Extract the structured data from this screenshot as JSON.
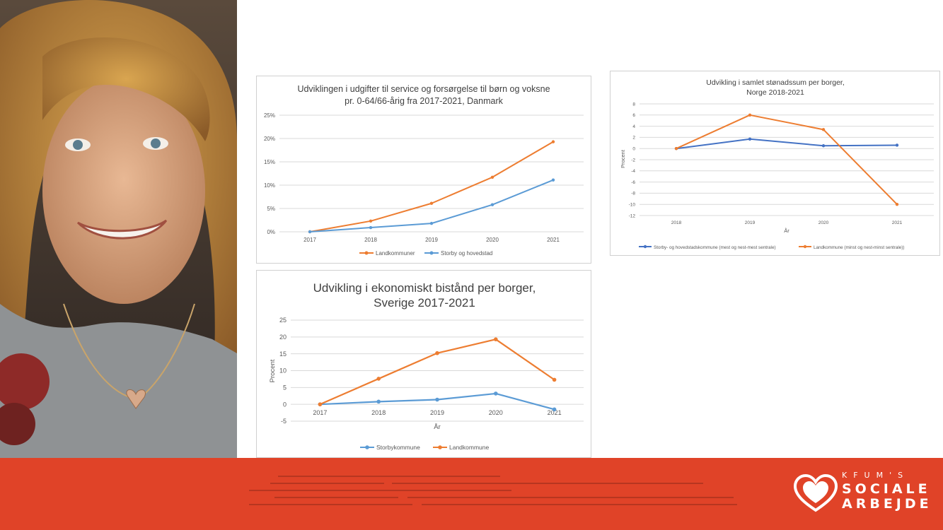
{
  "photo": {
    "alt_icon": "portrait-photo"
  },
  "charts": [
    {
      "title_lines": [
        "Udviklingen i udgifter til service og forsørgelse til børn og voksne",
        "pr. 0-64/66-årig fra 2017-2021, Danmark"
      ],
      "xlabel": "",
      "ylabel": "",
      "y_tick_labels": [
        "0%",
        "5%",
        "10%",
        "15%",
        "20%",
        "25%"
      ],
      "legend": [
        "Landkommuner",
        "Storby og hovedstad"
      ]
    },
    {
      "title_lines": [
        "Udvikling i samlet stønadssum per borger,",
        "Norge 2018-2021"
      ],
      "xlabel": "År",
      "ylabel": "Procent",
      "legend": [
        "Storby- og hovedstadskommune (mest og nest-mest sentrale)",
        "Landkommune (minst og nest-minst sentrale))"
      ]
    },
    {
      "title_lines": [
        "Udvikling i ekonomiskt bistånd per borger,",
        "Sverige 2017-2021"
      ],
      "xlabel": "År",
      "ylabel": "Procent",
      "legend": [
        "Storbykommune",
        "Landkommune"
      ]
    }
  ],
  "chart_data": [
    {
      "type": "line",
      "categories": [
        "2017",
        "2018",
        "2019",
        "2020",
        "2021"
      ],
      "ylim": [
        0,
        25
      ],
      "y_unit": "%",
      "grid": true,
      "legend_position": "bottom",
      "series": [
        {
          "name": "Landkommuner",
          "color": "#ed7d31",
          "values": [
            0,
            2.3,
            6.1,
            11.7,
            19.3
          ]
        },
        {
          "name": "Storby og hovedstad",
          "color": "#5b9bd5",
          "values": [
            0,
            0.9,
            1.8,
            5.8,
            11.1
          ]
        }
      ]
    },
    {
      "type": "line",
      "categories": [
        "2018",
        "2019",
        "2020",
        "2021"
      ],
      "ylim": [
        -12,
        8
      ],
      "yticks": [
        -12,
        -10,
        -8,
        -6,
        -4,
        -2,
        0,
        2,
        4,
        6,
        8
      ],
      "grid": true,
      "legend_position": "bottom",
      "series": [
        {
          "name": "Storby- og hovedstadskommune (mest og nest-mest sentrale)",
          "color": "#4472c4",
          "values": [
            0,
            1.7,
            0.5,
            0.6
          ]
        },
        {
          "name": "Landkommune (minst og nest-minst sentrale))",
          "color": "#ed7d31",
          "values": [
            0,
            6.0,
            3.4,
            -10.0
          ]
        }
      ]
    },
    {
      "type": "line",
      "categories": [
        "2017",
        "2018",
        "2019",
        "2020",
        "2021"
      ],
      "ylim": [
        -5,
        25
      ],
      "yticks": [
        -5,
        0,
        5,
        10,
        15,
        20,
        25
      ],
      "grid": true,
      "legend_position": "bottom",
      "series": [
        {
          "name": "Storbykommune",
          "color": "#5b9bd5",
          "values": [
            0,
            0.8,
            1.4,
            3.2,
            -1.5
          ]
        },
        {
          "name": "Landkommune",
          "color": "#ed7d31",
          "values": [
            0,
            7.6,
            15.2,
            19.3,
            7.3
          ]
        }
      ]
    }
  ],
  "logo": {
    "line1": "KFUM'S",
    "line2": "SOCIALE",
    "line3": "ARBEJDE",
    "icon": "heart-hands-icon"
  },
  "colors": {
    "footer": "#e04328",
    "orange": "#ed7d31",
    "blue": "#5b9bd5",
    "dark_blue": "#4472c4"
  }
}
